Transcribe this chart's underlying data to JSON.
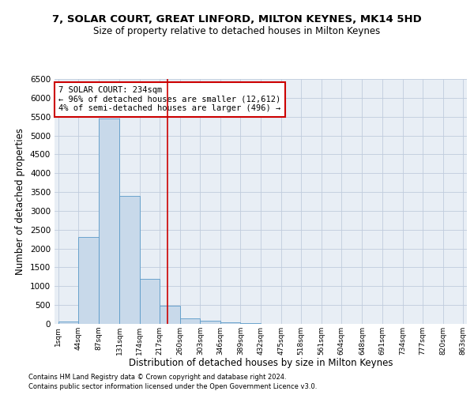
{
  "title_line1": "7, SOLAR COURT, GREAT LINFORD, MILTON KEYNES, MK14 5HD",
  "title_line2": "Size of property relative to detached houses in Milton Keynes",
  "xlabel": "Distribution of detached houses by size in Milton Keynes",
  "ylabel": "Number of detached properties",
  "footnote1": "Contains HM Land Registry data © Crown copyright and database right 2024.",
  "footnote2": "Contains public sector information licensed under the Open Government Licence v3.0.",
  "annotation_title": "7 SOLAR COURT: 234sqm",
  "annotation_line1": "← 96% of detached houses are smaller (12,612)",
  "annotation_line2": "4% of semi-detached houses are larger (496) →",
  "property_size": 234,
  "bar_edges": [
    1,
    44,
    87,
    131,
    174,
    217,
    260,
    303,
    346,
    389,
    432,
    475,
    518,
    561,
    604,
    648,
    691,
    734,
    777,
    820,
    863
  ],
  "bar_heights": [
    60,
    2300,
    5450,
    3400,
    1200,
    480,
    145,
    85,
    50,
    20,
    10,
    5,
    0,
    0,
    0,
    0,
    0,
    0,
    0,
    0
  ],
  "bar_color": "#c8d9ea",
  "bar_edge_color": "#5a9ac8",
  "vline_color": "#cc0000",
  "vline_x": 234,
  "annotation_box_color": "#cc0000",
  "grid_color": "#c0ccdd",
  "background_color": "#e8eef5",
  "ylim": [
    0,
    6500
  ],
  "yticks": [
    0,
    500,
    1000,
    1500,
    2000,
    2500,
    3000,
    3500,
    4000,
    4500,
    5000,
    5500,
    6000,
    6500
  ]
}
